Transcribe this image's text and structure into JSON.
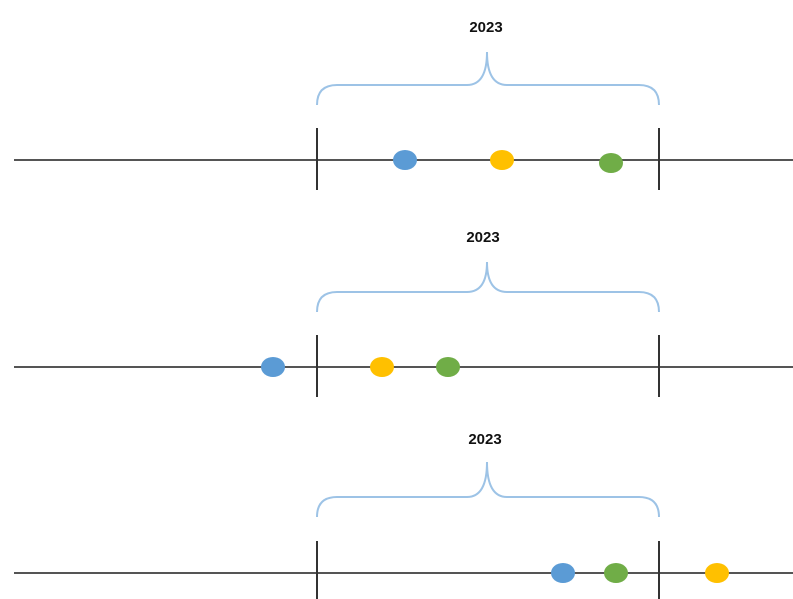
{
  "panels": [
    {
      "label": "2023"
    },
    {
      "label": "2023"
    },
    {
      "label": "2023"
    }
  ]
}
